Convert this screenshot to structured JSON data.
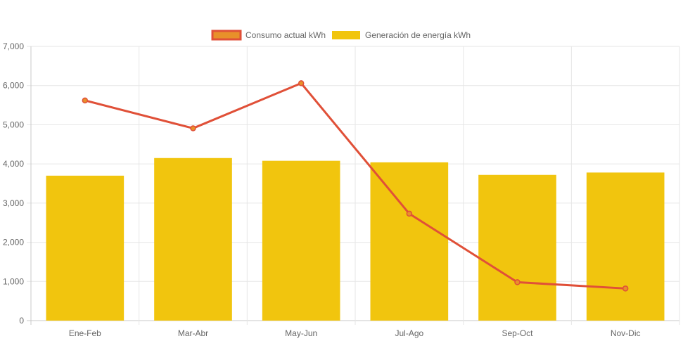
{
  "chart_data": {
    "type": "bar",
    "categories": [
      "Ene-Feb",
      "Mar-Abr",
      "May-Jun",
      "Jul-Ago",
      "Sep-Oct",
      "Nov-Dic"
    ],
    "series": [
      {
        "name": "Consumo actual kWh",
        "type": "line",
        "color": "#e05038",
        "fill_color": "#e8902a",
        "values": [
          5620,
          4910,
          6060,
          2730,
          980,
          820
        ]
      },
      {
        "name": "Generación de energía kWh",
        "type": "bar",
        "color": "#f1c50e",
        "values": [
          3700,
          4150,
          4080,
          4040,
          3720,
          3780
        ]
      }
    ],
    "y_ticks": [
      "0",
      "1,000",
      "2,000",
      "3,000",
      "4,000",
      "5,000",
      "6,000",
      "7,000"
    ],
    "ylim": [
      0,
      7000
    ],
    "grid": true,
    "legend_position": "top-center"
  }
}
